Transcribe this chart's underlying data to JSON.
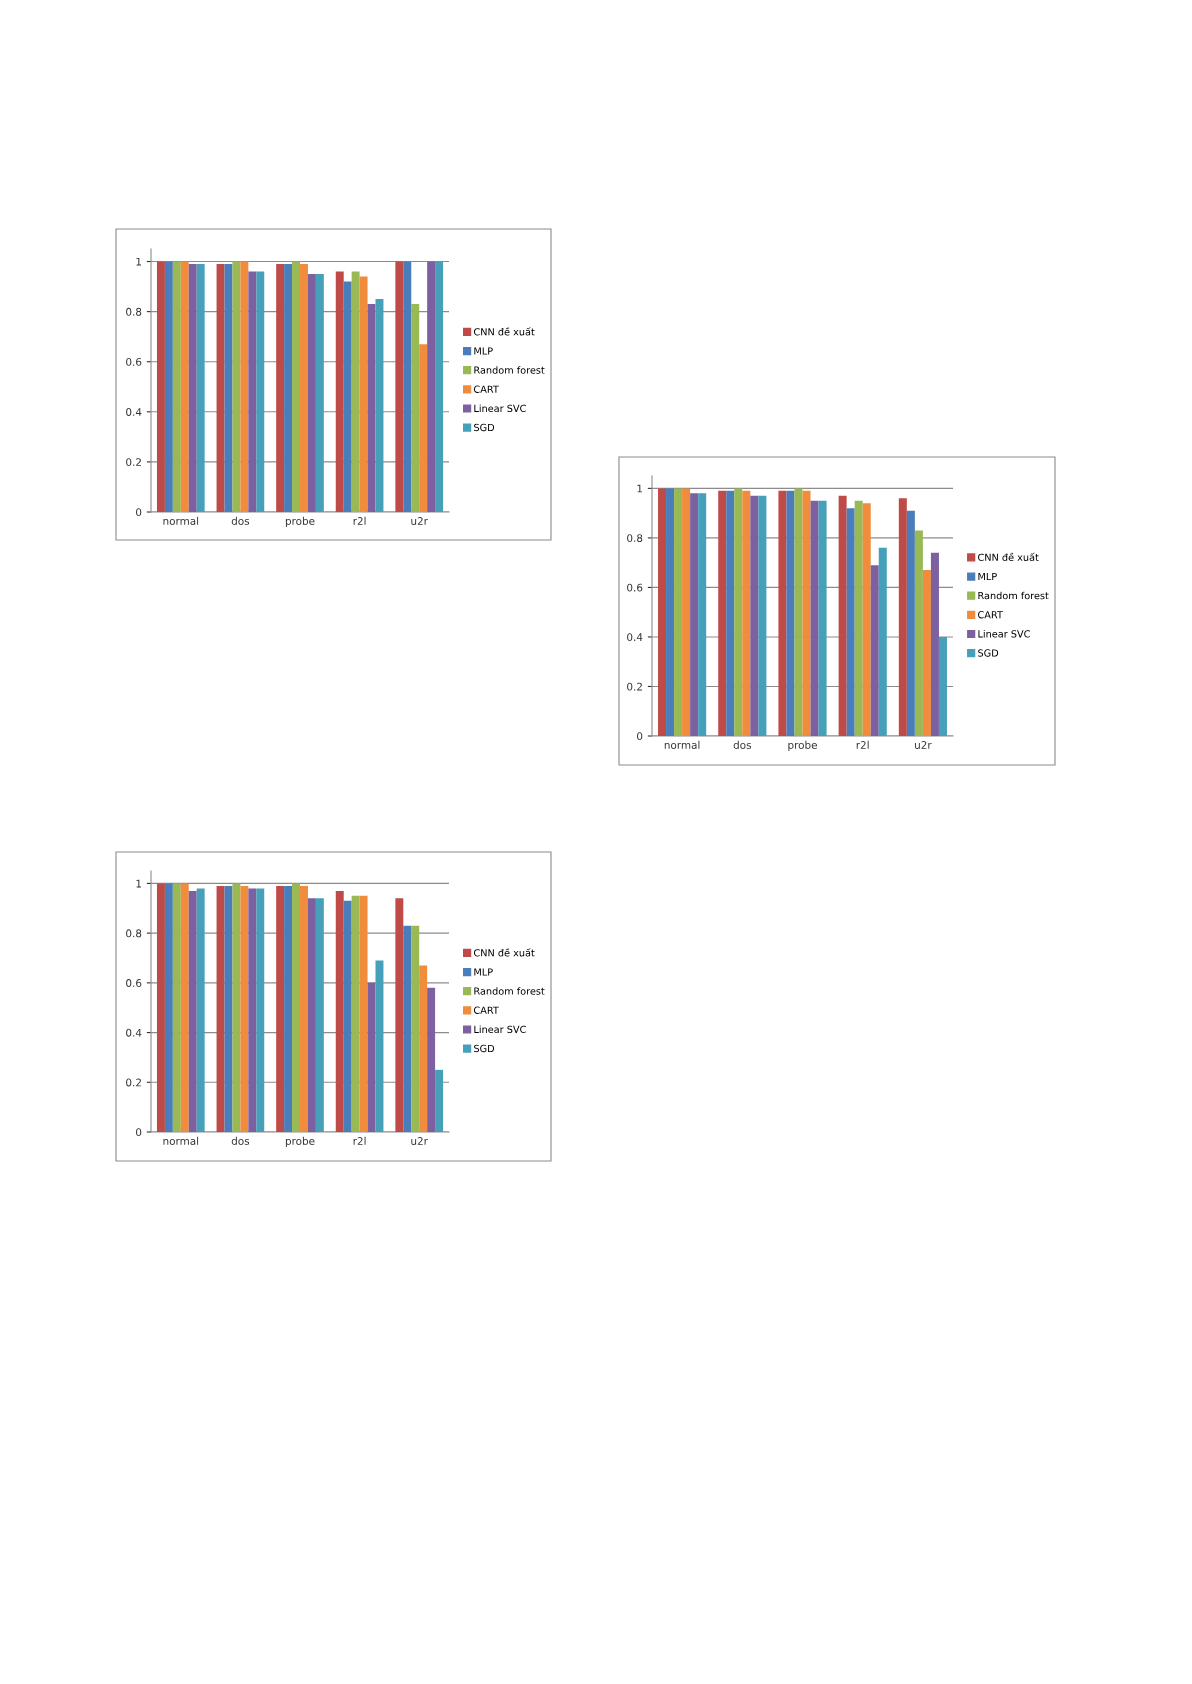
{
  "chart_data": [
    {
      "type": "bar",
      "categories": [
        "normal",
        "dos",
        "probe",
        "r2l",
        "u2r"
      ],
      "ylim": [
        0,
        1.05
      ],
      "yticks": [
        0,
        0.2,
        0.4,
        0.6,
        0.8,
        1
      ],
      "grid": "y",
      "legend": "right",
      "series": [
        {
          "name": "CNN đề xuất",
          "color": "#be4b48",
          "values": [
            1,
            0.99,
            0.99,
            0.96,
            1
          ]
        },
        {
          "name": "MLP",
          "color": "#4a7ebb",
          "values": [
            1,
            0.99,
            0.99,
            0.92,
            1
          ]
        },
        {
          "name": "Random forest",
          "color": "#98b954",
          "values": [
            1,
            1,
            1,
            0.96,
            0.83
          ]
        },
        {
          "name": "CART",
          "color": "#f08c3c",
          "values": [
            1,
            1,
            0.99,
            0.94,
            0.67
          ]
        },
        {
          "name": "Linear SVC",
          "color": "#7d60a0",
          "values": [
            0.99,
            0.96,
            0.95,
            0.83,
            1
          ]
        },
        {
          "name": "SGD",
          "color": "#46a0b9",
          "values": [
            0.99,
            0.96,
            0.95,
            0.85,
            1
          ]
        }
      ]
    },
    {
      "type": "bar",
      "categories": [
        "normal",
        "dos",
        "probe",
        "r2l",
        "u2r"
      ],
      "ylim": [
        0,
        1.05
      ],
      "yticks": [
        0,
        0.2,
        0.4,
        0.6,
        0.8,
        1
      ],
      "grid": "y",
      "legend": "right",
      "series": [
        {
          "name": "CNN đề xuất",
          "color": "#be4b48",
          "values": [
            1,
            0.99,
            0.99,
            0.97,
            0.96
          ]
        },
        {
          "name": "MLP",
          "color": "#4a7ebb",
          "values": [
            1,
            0.99,
            0.99,
            0.92,
            0.91
          ]
        },
        {
          "name": "Random forest",
          "color": "#98b954",
          "values": [
            1,
            1,
            1,
            0.95,
            0.83
          ]
        },
        {
          "name": "CART",
          "color": "#f08c3c",
          "values": [
            1,
            0.99,
            0.99,
            0.94,
            0.67
          ]
        },
        {
          "name": "Linear SVC",
          "color": "#7d60a0",
          "values": [
            0.98,
            0.97,
            0.95,
            0.69,
            0.74
          ]
        },
        {
          "name": "SGD",
          "color": "#46a0b9",
          "values": [
            0.98,
            0.97,
            0.95,
            0.76,
            0.4
          ]
        }
      ]
    },
    {
      "type": "bar",
      "categories": [
        "normal",
        "dos",
        "probe",
        "r2l",
        "u2r"
      ],
      "ylim": [
        0,
        1.05
      ],
      "yticks": [
        0,
        0.2,
        0.4,
        0.6,
        0.8,
        1
      ],
      "grid": "y",
      "legend": "right",
      "series": [
        {
          "name": "CNN đề xuất",
          "color": "#be4b48",
          "values": [
            1,
            0.99,
            0.99,
            0.97,
            0.94
          ]
        },
        {
          "name": "MLP",
          "color": "#4a7ebb",
          "values": [
            1,
            0.99,
            0.99,
            0.93,
            0.83
          ]
        },
        {
          "name": "Random forest",
          "color": "#98b954",
          "values": [
            1,
            1,
            1,
            0.95,
            0.83
          ]
        },
        {
          "name": "CART",
          "color": "#f08c3c",
          "values": [
            1,
            0.99,
            0.99,
            0.95,
            0.67
          ]
        },
        {
          "name": "Linear SVC",
          "color": "#7d60a0",
          "values": [
            0.97,
            0.98,
            0.94,
            0.6,
            0.58
          ]
        },
        {
          "name": "SGD",
          "color": "#46a0b9",
          "values": [
            0.98,
            0.98,
            0.94,
            0.69,
            0.25
          ]
        }
      ]
    }
  ]
}
